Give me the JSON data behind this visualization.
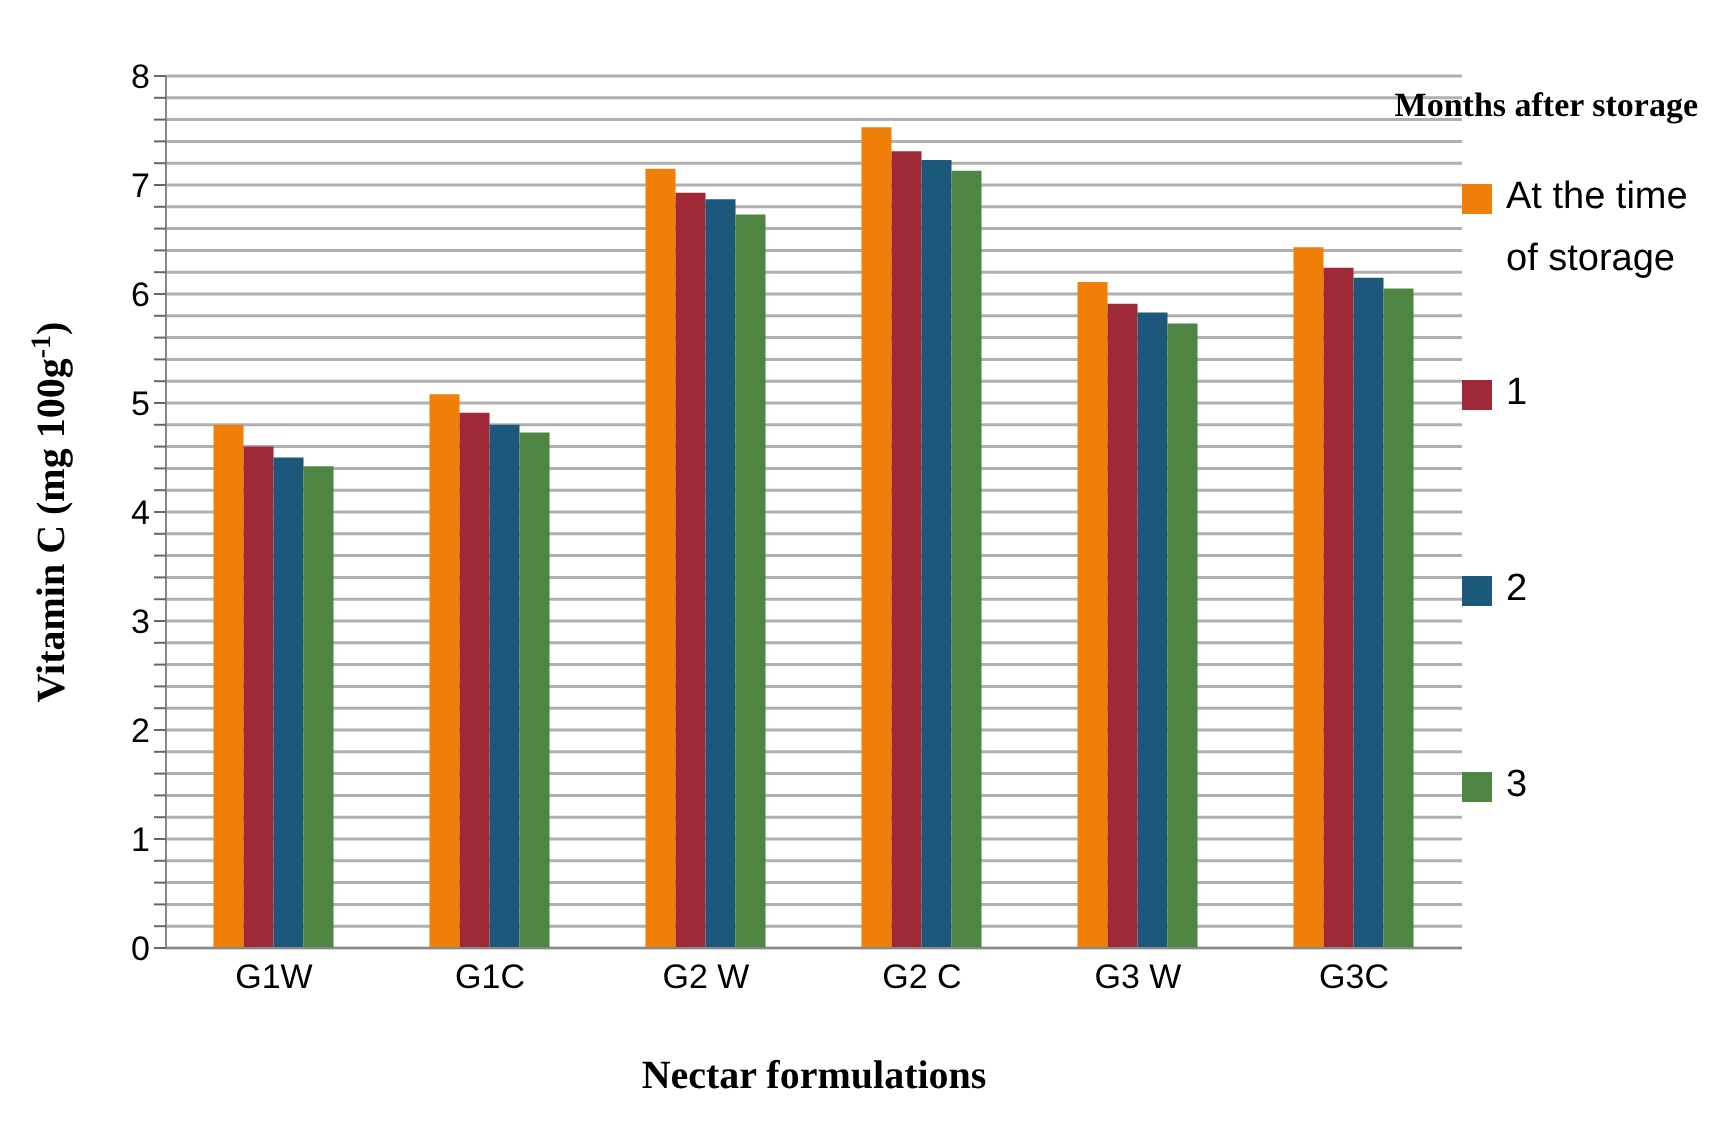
{
  "chart_data": {
    "type": "bar",
    "xlabel": "Nectar formulations",
    "ylabel": "Vitamin C (mg 100g$^{-1}$)",
    "legend_title": "Months after storage",
    "categories": [
      "G1W",
      "G1C",
      "G2 W",
      "G2 C",
      "G3 W",
      "G3C"
    ],
    "series": [
      {
        "name": "At the time of storage",
        "color": "#f07f09",
        "values": [
          4.8,
          5.08,
          7.15,
          7.53,
          6.11,
          6.43
        ]
      },
      {
        "name": "1",
        "color": "#9f2936",
        "values": [
          4.6,
          4.91,
          6.93,
          7.31,
          5.91,
          6.24
        ]
      },
      {
        "name": "2",
        "color": "#1b587c",
        "values": [
          4.5,
          4.8,
          6.87,
          7.23,
          5.83,
          6.15
        ]
      },
      {
        "name": "3",
        "color": "#4e8542",
        "values": [
          4.42,
          4.73,
          6.73,
          7.13,
          5.73,
          6.05
        ]
      }
    ],
    "ylim": [
      0,
      8
    ],
    "yticks": [
      0,
      {
        "value": 0.2,
        "label": null
      },
      {
        "value": 0.4,
        "label": null
      },
      {
        "value": 0.6,
        "label": null
      },
      {
        "value": 0.8,
        "label": null
      },
      1,
      {
        "value": 1.2,
        "label": null
      },
      {
        "value": 1.4,
        "label": null
      },
      {
        "value": 1.6,
        "label": null
      },
      {
        "value": 1.8,
        "label": null
      },
      2,
      {
        "value": 2.2,
        "label": null
      },
      {
        "value": 2.4,
        "label": null
      },
      {
        "value": 2.6,
        "label": null
      },
      {
        "value": 2.8,
        "label": null
      },
      3,
      {
        "value": 3.2,
        "label": null
      },
      {
        "value": 3.4,
        "label": null
      },
      {
        "value": 3.6,
        "label": null
      },
      {
        "value": 3.8,
        "label": null
      },
      4,
      {
        "value": 4.2,
        "label": null
      },
      {
        "value": 4.4,
        "label": null
      },
      {
        "value": 4.6,
        "label": null
      },
      {
        "value": 4.8,
        "label": null
      },
      5,
      {
        "value": 5.2,
        "label": null
      },
      {
        "value": 5.4,
        "label": null
      },
      {
        "value": 5.6,
        "label": null
      },
      {
        "value": 5.8,
        "label": null
      },
      6,
      {
        "value": 6.2,
        "label": null
      },
      {
        "value": 6.4,
        "label": null
      },
      {
        "value": 6.6,
        "label": null
      },
      {
        "value": 6.8,
        "label": null
      },
      7,
      {
        "value": 7.2,
        "label": null
      },
      {
        "value": 7.4,
        "label": null
      },
      {
        "value": 7.6,
        "label": null
      },
      {
        "value": 7.8,
        "label": null
      },
      8
    ],
    "grid": "y",
    "legend": "right"
  }
}
